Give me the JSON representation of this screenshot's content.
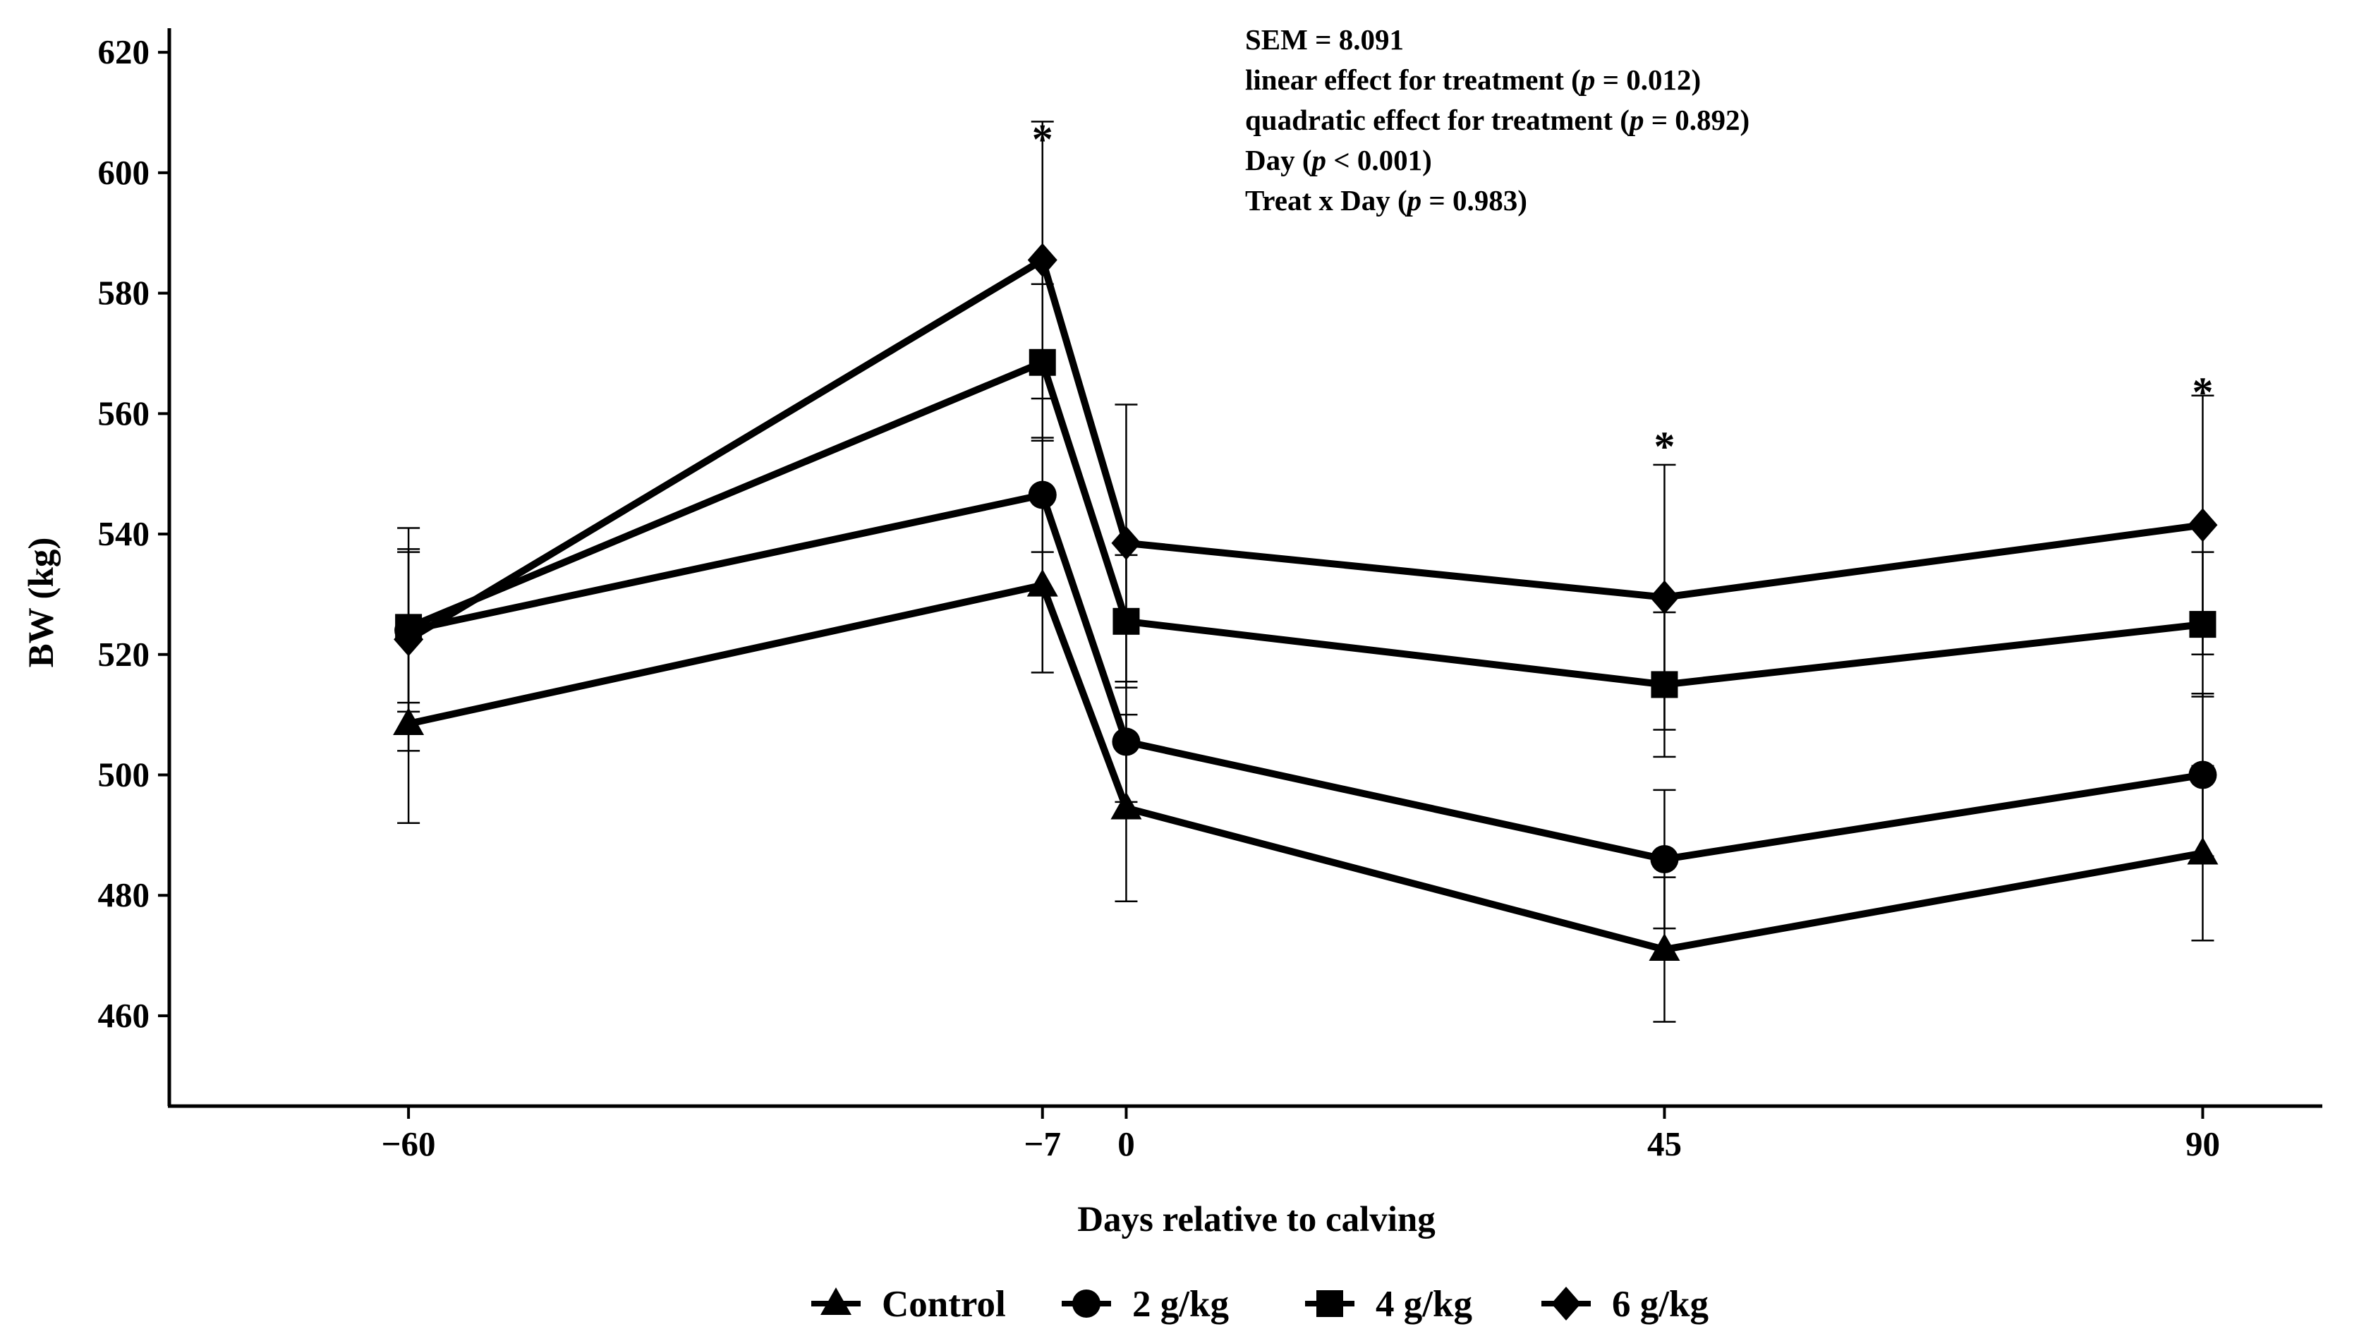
{
  "chart_data": {
    "type": "line",
    "xlabel": "Days relative to calving",
    "ylabel": "BW (kg)",
    "x": [
      -60,
      -7,
      0,
      45,
      90
    ],
    "x_tick_labels": [
      "−60",
      "−7",
      "0",
      "45",
      "90"
    ],
    "xlim": [
      -80,
      100
    ],
    "ylim": [
      445,
      624
    ],
    "y_ticks": [
      460,
      480,
      500,
      520,
      540,
      560,
      580,
      600,
      620
    ],
    "y_tick_labels": [
      "460",
      "480",
      "500",
      "520",
      "540",
      "560",
      "580",
      "600",
      "620"
    ],
    "series": [
      {
        "name": "Control",
        "marker": "triangle",
        "values": [
          508.5,
          531.5,
          494.5,
          471,
          487
        ],
        "errors": [
          16.5,
          14.5,
          15.5,
          12,
          14.5
        ]
      },
      {
        "name": "2 g/kg",
        "marker": "circle",
        "values": [
          524,
          546.5,
          505.5,
          486,
          500
        ],
        "errors": [
          13.5,
          9.5,
          10,
          11.5,
          13.5
        ]
      },
      {
        "name": "4 g/kg",
        "marker": "square",
        "values": [
          524.5,
          568.5,
          525.5,
          515,
          525
        ],
        "errors": [
          12.5,
          13,
          11,
          12,
          12
        ]
      },
      {
        "name": "6 g/kg",
        "marker": "diamond",
        "values": [
          522.5,
          585.5,
          538.5,
          529.5,
          541.5
        ],
        "errors": [
          18.5,
          23,
          23,
          22,
          21.5
        ]
      }
    ],
    "significance_labels": [
      {
        "x": -7,
        "y": 606,
        "text": "*"
      },
      {
        "x": 45,
        "y": 555,
        "text": "*"
      },
      {
        "x": 90,
        "y": 564,
        "text": "*"
      }
    ],
    "annotations": [
      {
        "segments": [
          {
            "text": "SEM = 8.091",
            "italic": false
          }
        ]
      },
      {
        "segments": [
          {
            "text": "linear effect for treatment (",
            "italic": false
          },
          {
            "text": "p",
            "italic": true
          },
          {
            "text": " = 0.012)",
            "italic": false
          }
        ]
      },
      {
        "segments": [
          {
            "text": "quadratic effect for treatment (",
            "italic": false
          },
          {
            "text": "p",
            "italic": true
          },
          {
            "text": " = 0.892)",
            "italic": false
          }
        ]
      },
      {
        "segments": [
          {
            "text": "Day (",
            "italic": false
          },
          {
            "text": "p",
            "italic": true
          },
          {
            "text": " < 0.001)",
            "italic": false
          }
        ]
      },
      {
        "segments": [
          {
            "text": "Treat x Day (",
            "italic": false
          },
          {
            "text": "p",
            "italic": true
          },
          {
            "text": " = 0.983)",
            "italic": false
          }
        ]
      }
    ],
    "legend": {
      "position": "bottom-center"
    }
  }
}
